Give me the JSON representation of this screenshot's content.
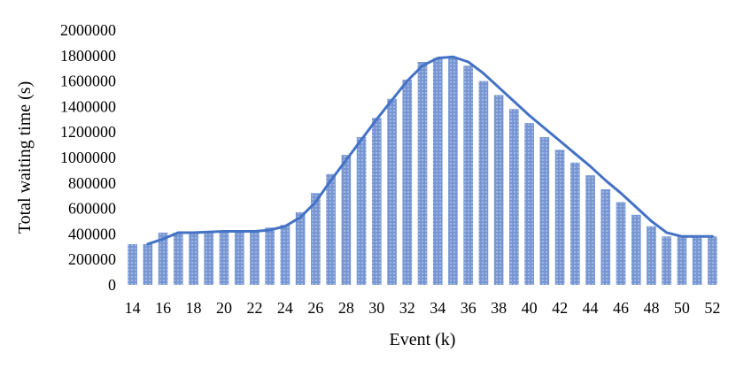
{
  "chart_data": {
    "type": "bar",
    "xlabel": "Event (k)",
    "ylabel": "Total waiting time (s)",
    "ylim": [
      0,
      2000000
    ],
    "yticks": [
      0,
      200000,
      400000,
      600000,
      800000,
      1000000,
      1200000,
      1400000,
      1600000,
      1800000,
      2000000
    ],
    "ytick_labels": [
      "0",
      "200000",
      "400000",
      "600000",
      "800000",
      "1000000",
      "1200000",
      "1400000",
      "1600000",
      "1800000",
      "2000000"
    ],
    "xtick_labels": [
      "14",
      "16",
      "18",
      "20",
      "22",
      "24",
      "26",
      "28",
      "30",
      "32",
      "34",
      "36",
      "38",
      "40",
      "42",
      "44",
      "46",
      "48",
      "50",
      "52"
    ],
    "grid": false,
    "legend": "none",
    "colors": {
      "bar": "#7896d2",
      "bar_stripe": "#9fb5e2",
      "line": "#4472c4"
    },
    "x": [
      14,
      15,
      16,
      17,
      18,
      19,
      20,
      21,
      22,
      23,
      24,
      25,
      26,
      27,
      28,
      29,
      30,
      31,
      32,
      33,
      34,
      35,
      36,
      37,
      38,
      39,
      40,
      41,
      42,
      43,
      44,
      45,
      46,
      47,
      48,
      49,
      50,
      51,
      52
    ],
    "series": [
      {
        "type": "bar",
        "values": [
          320000,
          320000,
          410000,
          410000,
          410000,
          415000,
          420000,
          420000,
          420000,
          450000,
          470000,
          570000,
          720000,
          870000,
          1020000,
          1160000,
          1310000,
          1460000,
          1610000,
          1750000,
          1780000,
          1780000,
          1720000,
          1600000,
          1490000,
          1380000,
          1270000,
          1160000,
          1060000,
          960000,
          860000,
          750000,
          650000,
          550000,
          460000,
          380000,
          380000,
          380000,
          380000
        ]
      },
      {
        "type": "line",
        "x": [
          15,
          16,
          17,
          18,
          19,
          20,
          21,
          22,
          23,
          24,
          25,
          26,
          27,
          28,
          29,
          30,
          31,
          32,
          33,
          34,
          35,
          36,
          37,
          38,
          39,
          40,
          41,
          42,
          43,
          44,
          45,
          46,
          47,
          48,
          49,
          50,
          51,
          52
        ],
        "values": [
          320000,
          360000,
          410000,
          410000,
          415000,
          420000,
          420000,
          420000,
          430000,
          460000,
          530000,
          650000,
          820000,
          980000,
          1140000,
          1300000,
          1450000,
          1600000,
          1720000,
          1780000,
          1790000,
          1750000,
          1660000,
          1550000,
          1440000,
          1330000,
          1230000,
          1130000,
          1030000,
          930000,
          820000,
          720000,
          610000,
          500000,
          410000,
          380000,
          380000,
          380000
        ]
      }
    ]
  }
}
